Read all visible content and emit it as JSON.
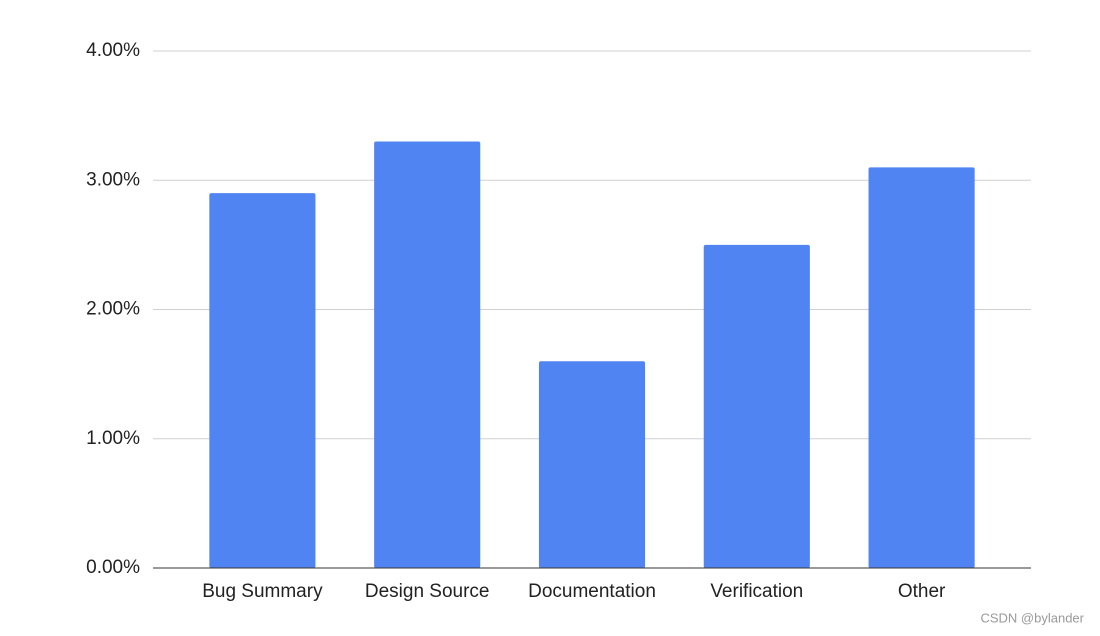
{
  "chart_data": {
    "type": "bar",
    "categories": [
      "Bug Summary",
      "Design Source",
      "Documentation",
      "Verification",
      "Other"
    ],
    "values": [
      2.9,
      3.3,
      1.6,
      2.5,
      3.1
    ],
    "color": "#5084f2",
    "ylim": [
      0,
      4
    ],
    "yticks": [
      {
        "value": 0,
        "label": "0.00%"
      },
      {
        "value": 1,
        "label": "1.00%"
      },
      {
        "value": 2,
        "label": "2.00%"
      },
      {
        "value": 3,
        "label": "3.00%"
      },
      {
        "value": 4,
        "label": "4.00%"
      }
    ],
    "grid": true
  },
  "watermark": "CSDN @bylander"
}
